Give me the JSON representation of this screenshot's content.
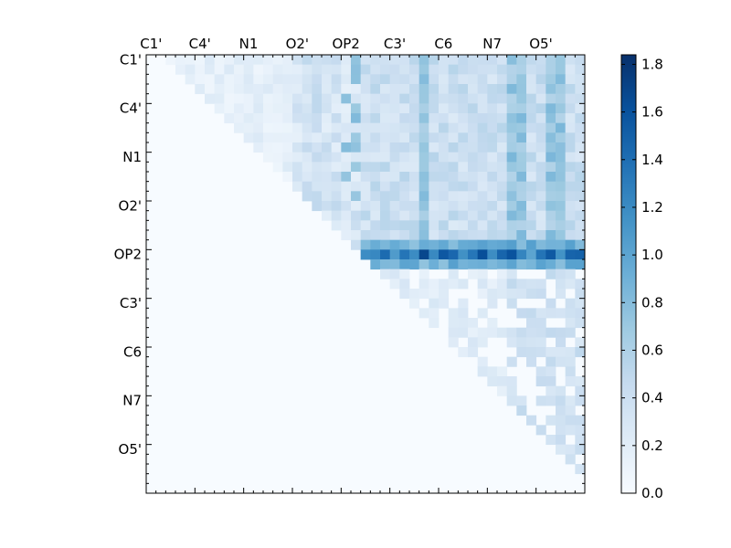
{
  "chart_data": {
    "type": "heatmap",
    "title": "",
    "xlabel": "",
    "ylabel": "",
    "matrix_size": 45,
    "x_tick_labels": [
      "C1'",
      "C4'",
      "N1",
      "O2'",
      "OP2",
      "C3'",
      "C6",
      "N7",
      "O5'"
    ],
    "y_tick_labels": [
      "C1'",
      "C4'",
      "N1",
      "O2'",
      "OP2",
      "C3'",
      "C6",
      "N7",
      "O5'"
    ],
    "tick_positions": [
      0,
      5,
      10,
      15,
      20,
      25,
      30,
      35,
      40
    ],
    "colorbar": {
      "colormap": "Blues",
      "vmin": 0.0,
      "vmax": 1.84,
      "ticks": [
        "0.0",
        "0.2",
        "0.4",
        "0.6",
        "0.8",
        "1.0",
        "1.2",
        "1.4",
        "1.6",
        "1.8"
      ]
    },
    "strong_row": {
      "row": 20,
      "from_col": 22,
      "values_range": [
        1.0,
        1.7
      ]
    },
    "strong_columns": [
      28,
      37,
      38,
      41,
      42
    ],
    "colors": {
      "background": "#f7fbff",
      "axis": "#000000"
    }
  }
}
